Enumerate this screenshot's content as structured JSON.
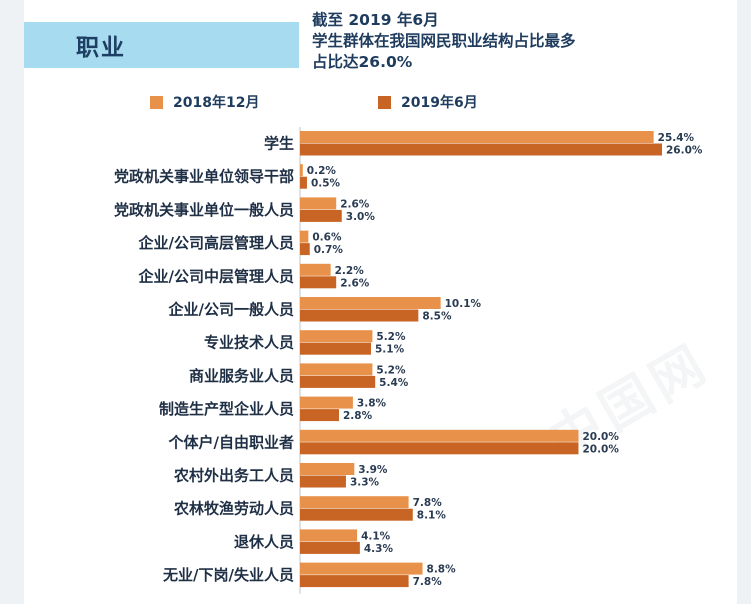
{
  "header": {
    "section_title": "职业",
    "headline_lines": [
      "截至 2019 年6月",
      "学生群体在我国网民职业结构占比最多",
      "占比达26.0%"
    ]
  },
  "colors": {
    "series_a": "#e8914a",
    "series_b": "#c96524",
    "header_band": "#a6dbf0"
  },
  "chart_data": {
    "type": "bar",
    "orientation": "horizontal",
    "categories": [
      "学生",
      "党政机关事业单位领导干部",
      "党政机关事业单位一般人员",
      "企业/公司高层管理人员",
      "企业/公司中层管理人员",
      "企业/公司一般人员",
      "专业技术人员",
      "商业服务业人员",
      "制造生产型企业人员",
      "个体户/自由职业者",
      "农村外出务工人员",
      "农林牧渔劳动人员",
      "退休人员",
      "无业/下岗/失业人员"
    ],
    "series": [
      {
        "name": "2018年12月",
        "values": [
          25.4,
          0.2,
          2.6,
          0.6,
          2.2,
          10.1,
          5.2,
          5.2,
          3.8,
          20.0,
          3.9,
          7.8,
          4.1,
          8.8
        ]
      },
      {
        "name": "2019年6月",
        "values": [
          26.0,
          0.5,
          3.0,
          0.7,
          2.6,
          8.5,
          5.1,
          5.4,
          2.8,
          20.0,
          3.3,
          8.1,
          4.3,
          7.8
        ]
      }
    ],
    "value_labels": [
      [
        "25.4%",
        "0.2%",
        "2.6%",
        "0.6%",
        "2.2%",
        "10.1%",
        "5.2%",
        "5.2%",
        "3.8%",
        "20.0%",
        "3.9%",
        "7.8%",
        "4.1%",
        "8.8%"
      ],
      [
        "26.0%",
        "0.5%",
        "3.0%",
        "0.7%",
        "2.6%",
        "8.5%",
        "5.1%",
        "5.4%",
        "2.8%",
        "20.0%",
        "3.3%",
        "8.1%",
        "4.3%",
        "7.8%"
      ]
    ],
    "unit": "%",
    "xlim": [
      0,
      26.0
    ],
    "grid": false,
    "legend_position": "top"
  }
}
